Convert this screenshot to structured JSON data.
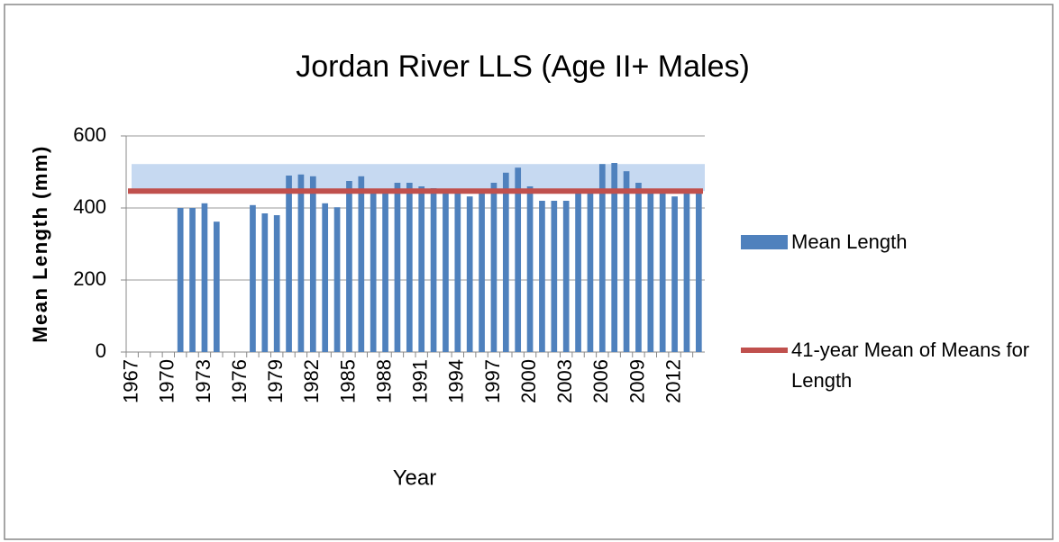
{
  "chart_data": {
    "type": "bar",
    "title": "Jordan River LLS (Age II+ Males)",
    "x_label": "Year",
    "y_label": "Mean Length (mm)",
    "categories": [
      "1967",
      null,
      null,
      "1970",
      null,
      null,
      "1973",
      null,
      null,
      "1976",
      null,
      null,
      "1979",
      null,
      null,
      "1982",
      null,
      null,
      "1985",
      null,
      null,
      "1988",
      null,
      null,
      "1991",
      null,
      null,
      "1994",
      null,
      null,
      "1997",
      null,
      null,
      "2000",
      null,
      null,
      "2003",
      null,
      null,
      "2006",
      null,
      null,
      "2009",
      null,
      null,
      "2012",
      null,
      null
    ],
    "series": [
      {
        "name": "Mean Length",
        "color": "#4f81bd",
        "values": [
          null,
          null,
          null,
          null,
          400,
          400,
          413,
          362,
          null,
          null,
          408,
          385,
          380,
          490,
          493,
          488,
          413,
          402,
          475,
          488,
          450,
          450,
          470,
          470,
          460,
          455,
          450,
          450,
          432,
          440,
          470,
          498,
          512,
          460,
          420,
          420,
          420,
          445,
          445,
          522,
          525,
          502,
          470,
          450,
          450,
          432,
          450,
          450
        ]
      },
      {
        "name": "41-year Mean of Means for Length",
        "color": "#c0504d",
        "type": "hline",
        "value": 447
      }
    ],
    "band": {
      "range": [
        447,
        522
      ],
      "color": "#c6d9f1"
    },
    "ylim": [
      0,
      600
    ],
    "yticks": [
      0,
      200,
      400,
      600
    ],
    "grid": true
  }
}
